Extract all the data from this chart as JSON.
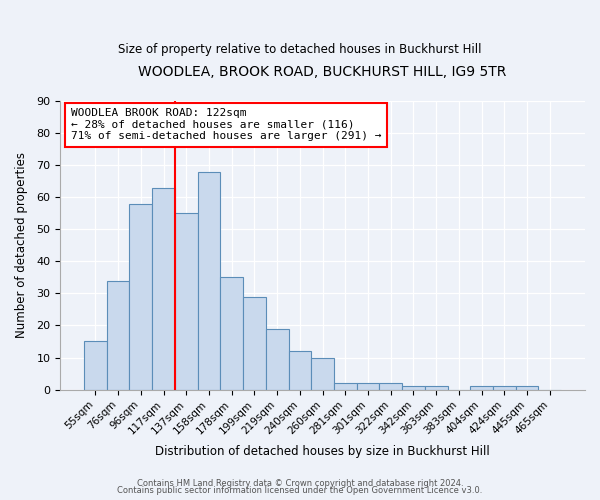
{
  "title": "WOODLEA, BROOK ROAD, BUCKHURST HILL, IG9 5TR",
  "subtitle": "Size of property relative to detached houses in Buckhurst Hill",
  "xlabel": "Distribution of detached houses by size in Buckhurst Hill",
  "ylabel": "Number of detached properties",
  "bar_color": "#c9d9ed",
  "bar_edge_color": "#5b8db8",
  "categories": [
    "55sqm",
    "76sqm",
    "96sqm",
    "117sqm",
    "137sqm",
    "158sqm",
    "178sqm",
    "199sqm",
    "219sqm",
    "240sqm",
    "260sqm",
    "281sqm",
    "301sqm",
    "322sqm",
    "342sqm",
    "363sqm",
    "383sqm",
    "404sqm",
    "424sqm",
    "445sqm",
    "465sqm"
  ],
  "values": [
    15,
    34,
    58,
    63,
    55,
    68,
    35,
    29,
    19,
    12,
    10,
    2,
    2,
    2,
    1,
    1,
    0,
    1,
    1,
    1,
    0
  ],
  "red_line_x": 3.5,
  "annotation_text": "WOODLEA BROOK ROAD: 122sqm\n← 28% of detached houses are smaller (116)\n71% of semi-detached houses are larger (291) →",
  "footer_line1": "Contains HM Land Registry data © Crown copyright and database right 2024.",
  "footer_line2": "Contains public sector information licensed under the Open Government Licence v3.0.",
  "background_color": "#eef2f9",
  "grid_color": "#ffffff",
  "ylim": [
    0,
    90
  ],
  "yticks": [
    0,
    10,
    20,
    30,
    40,
    50,
    60,
    70,
    80,
    90
  ]
}
